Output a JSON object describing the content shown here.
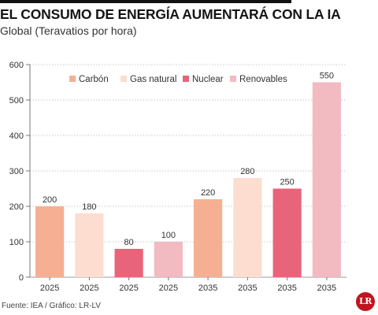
{
  "header": {
    "title": "EL CONSUMO DE ENERGÍA AUMENTARÁ CON LA IA",
    "subtitle": "Global (Teravatios por hora)"
  },
  "footer": {
    "source": "Fuente: IEA / Gráfico: LR-LV",
    "logo_text": "LR"
  },
  "chart_data": {
    "type": "bar",
    "title": "EL CONSUMO DE ENERGÍA AUMENTARÁ CON LA IA",
    "subtitle": "Global (Teravatios por hora)",
    "xlabel": "",
    "ylabel": "",
    "ylim": [
      0,
      600
    ],
    "yticks": [
      0,
      100,
      200,
      300,
      400,
      500,
      600
    ],
    "grid": true,
    "legend_position": "top",
    "legend": [
      {
        "name": "Carbón",
        "color": "#f5b093"
      },
      {
        "name": "Gas natural",
        "color": "#fcddd0"
      },
      {
        "name": "Nuclear",
        "color": "#e8647a"
      },
      {
        "name": "Renovables",
        "color": "#f2bac1"
      }
    ],
    "categories": [
      "2025",
      "2025",
      "2025",
      "2025",
      "2035",
      "2035",
      "2035",
      "2035"
    ],
    "values": [
      200,
      180,
      80,
      100,
      220,
      280,
      250,
      550
    ],
    "bar_series": [
      "Carbón",
      "Gas natural",
      "Nuclear",
      "Renovables",
      "Carbón",
      "Gas natural",
      "Nuclear",
      "Renovables"
    ]
  }
}
